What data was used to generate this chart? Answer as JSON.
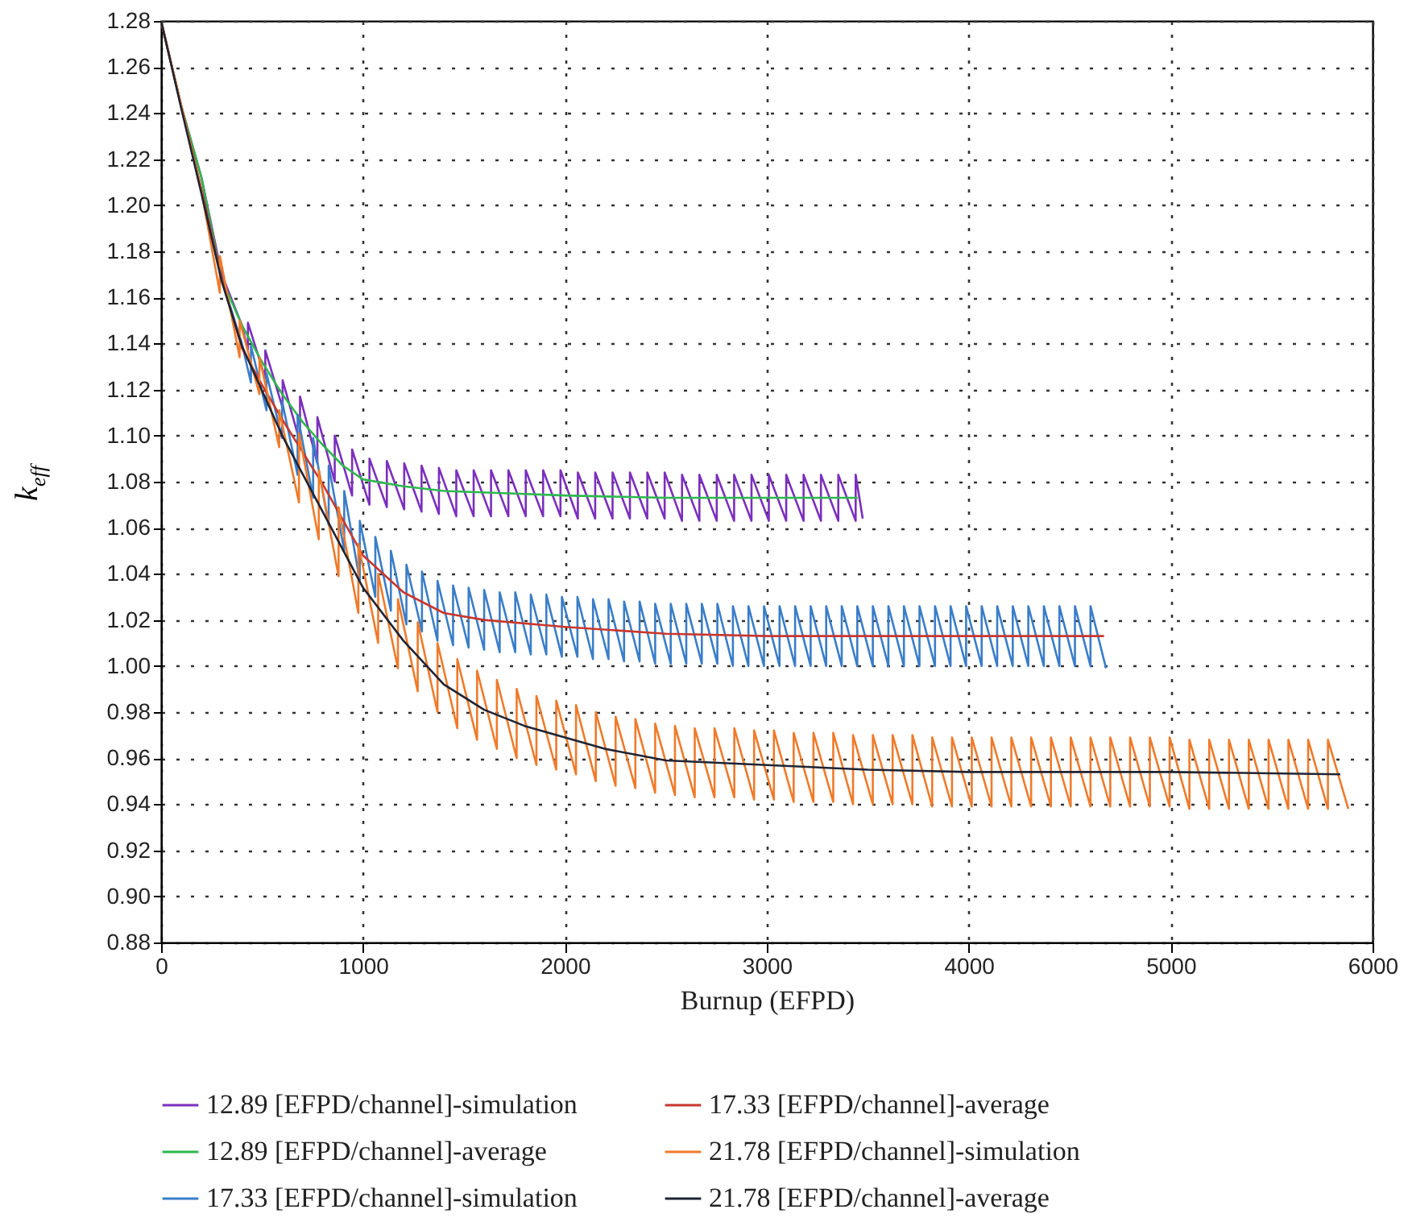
{
  "chart_data": {
    "type": "line",
    "xlabel": "Burnup (EFPD)",
    "ylabel": "k$_{eff}$",
    "xlim": [
      0,
      6000
    ],
    "xticks": [
      0,
      1000,
      2000,
      3000,
      4000,
      5000,
      6000
    ],
    "ylim": [
      0.88,
      1.28
    ],
    "yticks": [
      0.88,
      {
        "value": 0.9,
        "label": "0.90"
      },
      0.92,
      0.94,
      0.96,
      0.98,
      {
        "value": 1,
        "label": "1.00"
      },
      1.02,
      1.04,
      1.06,
      1.08,
      {
        "value": 1.1,
        "label": "1.10"
      },
      1.12,
      1.14,
      1.16,
      1.18,
      {
        "value": 1.2,
        "label": "1.20"
      },
      1.22,
      1.24,
      1.26,
      1.28
    ],
    "grid": true,
    "legend": "bottom",
    "line_style": "solid",
    "series": [
      {
        "name": "12.89 [EFPD/channel]-simulation",
        "color": "#7b2fbe",
        "x": [
          0,
          100,
          200,
          300,
          400,
          430,
          430,
          516,
          516,
          602,
          602,
          688,
          688,
          774,
          774,
          860,
          860,
          946,
          946,
          1032,
          1032,
          1118,
          1118,
          1204,
          1204,
          1290,
          1290,
          1376,
          1376,
          1462,
          1462,
          1548,
          1548,
          1634,
          1634,
          1720,
          1720,
          1806,
          1806,
          1892,
          1892,
          1978,
          1978,
          2064,
          2064,
          2150,
          2150,
          2236,
          2236,
          2322,
          2322,
          2408,
          2408,
          2494,
          2494,
          2580,
          2580,
          2666,
          2666,
          2752,
          2752,
          2838,
          2838,
          2924,
          2924,
          3010,
          3010,
          3096,
          3096,
          3182,
          3182,
          3268,
          3268,
          3354,
          3354,
          3440,
          3440,
          3475
        ],
        "values": [
          1.28,
          1.243,
          1.212,
          1.17,
          1.148,
          1.137,
          1.149,
          1.125,
          1.137,
          1.112,
          1.124,
          1.097,
          1.117,
          1.088,
          1.108,
          1.08,
          1.1,
          1.074,
          1.094,
          1.07,
          1.09,
          1.069,
          1.089,
          1.068,
          1.088,
          1.067,
          1.087,
          1.066,
          1.086,
          1.065,
          1.085,
          1.065,
          1.085,
          1.065,
          1.085,
          1.065,
          1.085,
          1.065,
          1.085,
          1.065,
          1.085,
          1.065,
          1.085,
          1.064,
          1.084,
          1.064,
          1.084,
          1.064,
          1.084,
          1.064,
          1.084,
          1.064,
          1.084,
          1.064,
          1.084,
          1.063,
          1.083,
          1.063,
          1.083,
          1.063,
          1.083,
          1.063,
          1.083,
          1.063,
          1.083,
          1.063,
          1.083,
          1.063,
          1.083,
          1.063,
          1.083,
          1.063,
          1.083,
          1.063,
          1.083,
          1.063,
          1.083,
          1.064
        ]
      },
      {
        "name": "12.89 [EFPD/channel]-average",
        "color": "#2db84d",
        "x": [
          0,
          100,
          200,
          300,
          400,
          500,
          600,
          700,
          800,
          900,
          1000,
          1200,
          1400,
          1700,
          2000,
          2500,
          3000,
          3450
        ],
        "values": [
          1.28,
          1.243,
          1.212,
          1.168,
          1.148,
          1.132,
          1.118,
          1.106,
          1.096,
          1.087,
          1.081,
          1.078,
          1.076,
          1.075,
          1.074,
          1.073,
          1.073,
          1.073
        ]
      },
      {
        "name": "17.33 [EFPD/channel]-simulation",
        "color": "#3a7dc9",
        "x": [
          200,
          300,
          400,
          445,
          445,
          522,
          522,
          599,
          599,
          676,
          676,
          753,
          753,
          830,
          830,
          907,
          907,
          984,
          984,
          1061,
          1061,
          1138,
          1138,
          1215,
          1215,
          1292,
          1292,
          1369,
          1369,
          1446,
          1446,
          1523,
          1523,
          1600,
          1600,
          1677,
          1677,
          1754,
          1754,
          1831,
          1831,
          1908,
          1908,
          1985,
          1985,
          2062,
          2062,
          2139,
          2139,
          2216,
          2216,
          2293,
          2293,
          2370,
          2370,
          2447,
          2447,
          2524,
          2524,
          2601,
          2601,
          2678,
          2678,
          2755,
          2755,
          2832,
          2832,
          2909,
          2909,
          2986,
          2986,
          3063,
          3063,
          3140,
          3140,
          3217,
          3217,
          3294,
          3294,
          3371,
          3371,
          3448,
          3448,
          3525,
          3525,
          3602,
          3602,
          3679,
          3679,
          3756,
          3756,
          3833,
          3833,
          3910,
          3910,
          3987,
          3987,
          4064,
          4064,
          4141,
          4141,
          4218,
          4218,
          4295,
          4295,
          4372,
          4372,
          4449,
          4449,
          4526,
          4526,
          4603,
          4603,
          4680
        ],
        "values": [
          1.207,
          1.168,
          1.14,
          1.123,
          1.139,
          1.111,
          1.127,
          1.099,
          1.115,
          1.083,
          1.109,
          1.073,
          1.099,
          1.061,
          1.087,
          1.05,
          1.076,
          1.037,
          1.063,
          1.03,
          1.056,
          1.024,
          1.05,
          1.018,
          1.044,
          1.015,
          1.041,
          1.011,
          1.037,
          1.009,
          1.035,
          1.008,
          1.034,
          1.007,
          1.033,
          1.006,
          1.032,
          1.006,
          1.032,
          1.005,
          1.031,
          1.005,
          1.031,
          1.004,
          1.03,
          1.004,
          1.03,
          1.003,
          1.029,
          1.003,
          1.029,
          1.002,
          1.028,
          1.002,
          1.028,
          1.001,
          1.027,
          1.001,
          1.027,
          1.001,
          1.027,
          1.001,
          1.027,
          1.001,
          1.027,
          1,
          1.026,
          1,
          1.026,
          1,
          1.026,
          1,
          1.026,
          1,
          1.026,
          1,
          1.026,
          1,
          1.026,
          1,
          1.026,
          1,
          1.026,
          1,
          1.026,
          1,
          1.026,
          1,
          1.026,
          1,
          1.026,
          1,
          1.026,
          1,
          1.026,
          1,
          1.026,
          1,
          1.026,
          1,
          1.026,
          1,
          1.026,
          1,
          1.026,
          1,
          1.026,
          1,
          1.026,
          1,
          1.026,
          1,
          1.026,
          0.999
        ]
      },
      {
        "name": "17.33 [EFPD/channel]-average",
        "color": "#c8372d",
        "x": [
          0,
          100,
          200,
          300,
          400,
          500,
          600,
          800,
          1000,
          1200,
          1400,
          1600,
          2000,
          2500,
          3000,
          4000,
          4670
        ],
        "values": [
          1.28,
          1.243,
          1.207,
          1.168,
          1.138,
          1.122,
          1.107,
          1.079,
          1.048,
          1.032,
          1.023,
          1.02,
          1.017,
          1.014,
          1.013,
          1.013,
          1.013
        ]
      },
      {
        "name": "21.78 [EFPD/channel]-simulation",
        "color": "#f07a2a",
        "x": [
          0,
          100,
          200,
          291,
          291,
          389,
          389,
          487,
          487,
          585,
          585,
          683,
          683,
          781,
          781,
          879,
          879,
          977,
          977,
          1075,
          1075,
          1173,
          1173,
          1271,
          1271,
          1369,
          1369,
          1467,
          1467,
          1565,
          1565,
          1663,
          1663,
          1761,
          1761,
          1859,
          1859,
          1957,
          1957,
          2055,
          2055,
          2153,
          2153,
          2251,
          2251,
          2349,
          2349,
          2447,
          2447,
          2545,
          2545,
          2643,
          2643,
          2741,
          2741,
          2839,
          2839,
          2937,
          2937,
          3035,
          3035,
          3133,
          3133,
          3231,
          3231,
          3329,
          3329,
          3427,
          3427,
          3525,
          3525,
          3623,
          3623,
          3721,
          3721,
          3819,
          3819,
          3917,
          3917,
          4015,
          4015,
          4113,
          4113,
          4211,
          4211,
          4309,
          4309,
          4407,
          4407,
          4505,
          4505,
          4603,
          4603,
          4701,
          4701,
          4799,
          4799,
          4897,
          4897,
          4995,
          4995,
          5093,
          5093,
          5191,
          5191,
          5289,
          5289,
          5387,
          5387,
          5485,
          5485,
          5583,
          5583,
          5681,
          5681,
          5779,
          5779,
          5880
        ],
        "values": [
          1.28,
          1.243,
          1.206,
          1.162,
          1.178,
          1.134,
          1.15,
          1.118,
          1.134,
          1.095,
          1.111,
          1.071,
          1.101,
          1.055,
          1.085,
          1.039,
          1.069,
          1.023,
          1.053,
          1.01,
          1.04,
          0.999,
          1.029,
          0.989,
          1.019,
          0.98,
          1.01,
          0.973,
          1.003,
          0.968,
          0.998,
          0.964,
          0.994,
          0.96,
          0.99,
          0.957,
          0.987,
          0.955,
          0.985,
          0.953,
          0.983,
          0.95,
          0.98,
          0.948,
          0.978,
          0.947,
          0.977,
          0.945,
          0.975,
          0.944,
          0.974,
          0.943,
          0.973,
          0.943,
          0.973,
          0.943,
          0.973,
          0.942,
          0.972,
          0.942,
          0.972,
          0.941,
          0.971,
          0.941,
          0.971,
          0.941,
          0.971,
          0.94,
          0.97,
          0.94,
          0.97,
          0.94,
          0.97,
          0.94,
          0.97,
          0.939,
          0.969,
          0.939,
          0.969,
          0.939,
          0.969,
          0.939,
          0.969,
          0.939,
          0.969,
          0.939,
          0.969,
          0.939,
          0.969,
          0.939,
          0.969,
          0.939,
          0.969,
          0.939,
          0.969,
          0.939,
          0.969,
          0.939,
          0.969,
          0.939,
          0.969,
          0.938,
          0.968,
          0.938,
          0.968,
          0.938,
          0.968,
          0.938,
          0.968,
          0.938,
          0.968,
          0.938,
          0.968,
          0.938,
          0.968,
          0.938,
          0.968,
          0.938
        ]
      },
      {
        "name": "21.78 [EFPD/channel]-average",
        "color": "#1f2433",
        "x": [
          0,
          100,
          200,
          300,
          400,
          600,
          800,
          1000,
          1200,
          1400,
          1600,
          1800,
          2000,
          2200,
          2500,
          3000,
          3500,
          4000,
          5000,
          5840
        ],
        "values": [
          1.28,
          1.242,
          1.205,
          1.167,
          1.139,
          1.1,
          1.067,
          1.034,
          1.011,
          0.992,
          0.981,
          0.974,
          0.969,
          0.964,
          0.959,
          0.957,
          0.955,
          0.954,
          0.954,
          0.953
        ]
      }
    ]
  }
}
